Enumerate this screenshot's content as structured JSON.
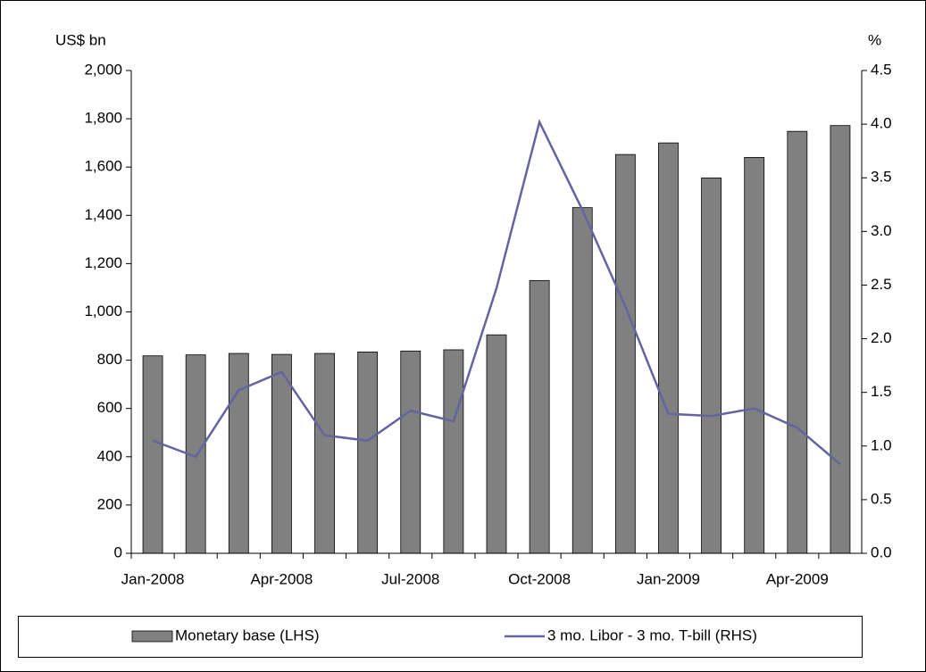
{
  "chart_data": {
    "type": "bar-line",
    "y_label": "US$ bn",
    "y2_label": "%",
    "categories": [
      "Jan-2008",
      null,
      null,
      "Apr-2008",
      null,
      null,
      "Jul-2008",
      null,
      null,
      "Oct-2008",
      null,
      null,
      "Jan-2009",
      null,
      null,
      "Apr-2009",
      null
    ],
    "series": [
      {
        "name": "Monetary base (LHS)",
        "type": "bar",
        "color": "#808080",
        "values": [
          818,
          822,
          828,
          824,
          828,
          834,
          838,
          843,
          905,
          1130,
          1432,
          1652,
          1700,
          1555,
          1640,
          1748,
          1772
        ]
      },
      {
        "name": "3 mo. Libor - 3 mo. T-bill (RHS)",
        "type": "line",
        "axis": "y2",
        "color": "#6464a0",
        "values": [
          1.05,
          0.9,
          1.52,
          1.69,
          1.1,
          1.05,
          1.33,
          1.23,
          2.47,
          4.02,
          3.2,
          2.3,
          1.3,
          1.28,
          1.35,
          1.17,
          0.83
        ]
      }
    ],
    "ylim": [
      0,
      2000
    ],
    "yticks": [
      0,
      200,
      400,
      600,
      800,
      {
        "value": 1000,
        "label": "1,000"
      },
      {
        "value": 1200,
        "label": "1,200"
      },
      {
        "value": 1400,
        "label": "1,400"
      },
      {
        "value": 1600,
        "label": "1,600"
      },
      {
        "value": 1800,
        "label": "1,800"
      },
      {
        "value": 2000,
        "label": "2,000"
      }
    ],
    "y2lim": [
      0,
      4.5
    ],
    "y2ticks": [
      {
        "value": 0,
        "label": "0.0"
      },
      0.5,
      {
        "value": 1,
        "label": "1.0"
      },
      1.5,
      {
        "value": 2,
        "label": "2.0"
      },
      2.5,
      {
        "value": 3,
        "label": "3.0"
      },
      3.5,
      {
        "value": 4,
        "label": "4.0"
      },
      4.5
    ],
    "legend": "bottom",
    "grid": false
  }
}
